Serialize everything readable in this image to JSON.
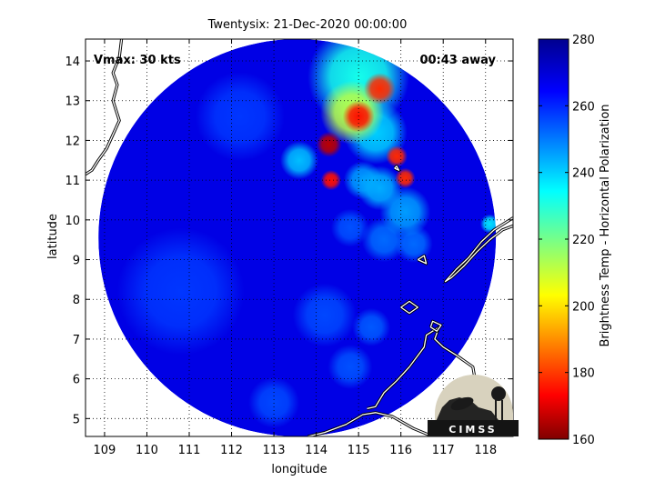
{
  "chart_data": {
    "type": "heatmap",
    "title": "Twentysix: 21-Dec-2020 00:00:00",
    "xlabel": "longitude",
    "ylabel": "latitude",
    "xlim": [
      108.55,
      118.65
    ],
    "ylim": [
      4.55,
      14.55
    ],
    "xticks": [
      109,
      110,
      111,
      112,
      113,
      114,
      115,
      116,
      117,
      118
    ],
    "yticks": [
      5,
      6,
      7,
      8,
      9,
      10,
      11,
      12,
      13,
      14
    ],
    "grid": true,
    "annotations": {
      "vmax": "Vmax: 30 kts",
      "away": "00:43 away"
    },
    "colorbar": {
      "label": "Brightness Temp - Horizontal Polarization",
      "min": 160,
      "max": 280,
      "ticks": [
        160,
        180,
        200,
        220,
        240,
        260,
        280
      ],
      "colormap": "jet"
    },
    "swath": {
      "center_lon": 113.55,
      "center_lat": 9.55,
      "radius_lat": 5.0
    },
    "background_value": 268,
    "features": [
      {
        "lon": 115.0,
        "lat": 13.6,
        "value": 232,
        "spread": 0.8
      },
      {
        "lon": 115.5,
        "lat": 13.3,
        "value": 178,
        "spread": 0.25
      },
      {
        "lon": 114.85,
        "lat": 12.7,
        "value": 212,
        "spread": 0.5
      },
      {
        "lon": 115.0,
        "lat": 12.6,
        "value": 175,
        "spread": 0.25
      },
      {
        "lon": 114.3,
        "lat": 11.9,
        "value": 166,
        "spread": 0.2
      },
      {
        "lon": 115.9,
        "lat": 11.6,
        "value": 178,
        "spread": 0.17
      },
      {
        "lon": 114.35,
        "lat": 11.0,
        "value": 175,
        "spread": 0.16
      },
      {
        "lon": 116.1,
        "lat": 11.05,
        "value": 178,
        "spread": 0.16
      },
      {
        "lon": 115.4,
        "lat": 12.2,
        "value": 240,
        "spread": 0.5
      },
      {
        "lon": 113.6,
        "lat": 11.5,
        "value": 242,
        "spread": 0.3
      },
      {
        "lon": 115.5,
        "lat": 10.8,
        "value": 244,
        "spread": 0.35
      },
      {
        "lon": 116.1,
        "lat": 10.2,
        "value": 246,
        "spread": 0.4
      },
      {
        "lon": 115.1,
        "lat": 11.0,
        "value": 246,
        "spread": 0.3
      },
      {
        "lon": 118.1,
        "lat": 9.9,
        "value": 238,
        "spread": 0.15
      },
      {
        "lon": 115.6,
        "lat": 9.5,
        "value": 252,
        "spread": 0.35
      },
      {
        "lon": 116.3,
        "lat": 9.4,
        "value": 252,
        "spread": 0.3
      },
      {
        "lon": 114.8,
        "lat": 9.8,
        "value": 255,
        "spread": 0.3
      },
      {
        "lon": 115.3,
        "lat": 7.3,
        "value": 254,
        "spread": 0.3
      },
      {
        "lon": 114.8,
        "lat": 6.3,
        "value": 255,
        "spread": 0.35
      },
      {
        "lon": 112.2,
        "lat": 12.6,
        "value": 258,
        "spread": 0.7
      },
      {
        "lon": 110.8,
        "lat": 8.2,
        "value": 258,
        "spread": 1.0
      },
      {
        "lon": 114.2,
        "lat": 7.6,
        "value": 256,
        "spread": 0.5
      },
      {
        "lon": 113.0,
        "lat": 5.4,
        "value": 256,
        "spread": 0.4
      }
    ],
    "coastlines": [
      [
        [
          109.4,
          14.55
        ],
        [
          109.35,
          14.1
        ],
        [
          109.2,
          13.7
        ],
        [
          109.3,
          13.4
        ],
        [
          109.2,
          13.0
        ],
        [
          109.35,
          12.5
        ],
        [
          109.2,
          12.15
        ],
        [
          109.05,
          11.8
        ],
        [
          108.85,
          11.5
        ],
        [
          108.7,
          11.25
        ],
        [
          108.55,
          11.15
        ]
      ],
      [
        [
          118.65,
          10.05
        ],
        [
          118.2,
          9.75
        ],
        [
          117.9,
          9.45
        ],
        [
          117.6,
          9.05
        ],
        [
          117.3,
          8.75
        ],
        [
          117.05,
          8.45
        ],
        [
          117.2,
          8.55
        ],
        [
          117.5,
          8.85
        ],
        [
          117.8,
          9.2
        ],
        [
          118.1,
          9.5
        ],
        [
          118.4,
          9.75
        ],
        [
          118.65,
          9.85
        ]
      ],
      [
        [
          116.75,
          4.55
        ],
        [
          116.3,
          4.75
        ],
        [
          115.8,
          5.05
        ],
        [
          115.4,
          5.15
        ],
        [
          115.1,
          5.1
        ],
        [
          114.7,
          4.85
        ],
        [
          114.2,
          4.65
        ],
        [
          113.8,
          4.55
        ]
      ],
      [
        [
          116.75,
          4.55
        ],
        [
          117.0,
          4.9
        ],
        [
          117.2,
          5.3
        ],
        [
          117.45,
          5.65
        ],
        [
          117.75,
          6.0
        ],
        [
          117.7,
          6.3
        ],
        [
          117.3,
          6.6
        ],
        [
          117.0,
          6.8
        ],
        [
          116.8,
          7.0
        ],
        [
          116.9,
          7.3
        ],
        [
          116.6,
          7.1
        ],
        [
          116.55,
          6.8
        ],
        [
          116.2,
          6.3
        ],
        [
          115.9,
          5.95
        ],
        [
          115.6,
          5.65
        ],
        [
          115.4,
          5.3
        ],
        [
          115.2,
          5.25
        ]
      ],
      [
        [
          116.7,
          7.3
        ],
        [
          116.85,
          7.2
        ],
        [
          116.95,
          7.35
        ],
        [
          116.75,
          7.45
        ],
        [
          116.7,
          7.3
        ]
      ],
      [
        [
          116.0,
          7.8
        ],
        [
          116.2,
          7.65
        ],
        [
          116.4,
          7.8
        ],
        [
          116.2,
          7.95
        ],
        [
          116.0,
          7.8
        ]
      ],
      [
        [
          116.4,
          9.0
        ],
        [
          116.6,
          8.9
        ],
        [
          116.55,
          9.1
        ],
        [
          116.4,
          9.0
        ]
      ],
      [
        [
          115.85,
          11.3
        ],
        [
          115.95,
          11.25
        ],
        [
          115.9,
          11.35
        ],
        [
          115.85,
          11.3
        ]
      ]
    ]
  }
}
